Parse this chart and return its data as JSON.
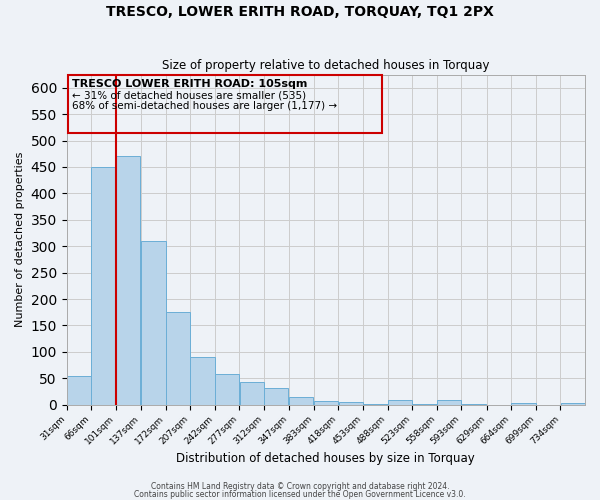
{
  "title": "TRESCO, LOWER ERITH ROAD, TORQUAY, TQ1 2PX",
  "subtitle": "Size of property relative to detached houses in Torquay",
  "xlabel": "Distribution of detached houses by size in Torquay",
  "ylabel": "Number of detached properties",
  "bins": [
    "31sqm",
    "66sqm",
    "101sqm",
    "137sqm",
    "172sqm",
    "207sqm",
    "242sqm",
    "277sqm",
    "312sqm",
    "347sqm",
    "383sqm",
    "418sqm",
    "453sqm",
    "488sqm",
    "523sqm",
    "558sqm",
    "593sqm",
    "629sqm",
    "664sqm",
    "699sqm",
    "734sqm"
  ],
  "bin_edges": [
    31,
    66,
    101,
    137,
    172,
    207,
    242,
    277,
    312,
    347,
    383,
    418,
    453,
    488,
    523,
    558,
    593,
    629,
    664,
    699,
    734
  ],
  "bin_width": 35,
  "values": [
    55,
    450,
    470,
    310,
    175,
    90,
    58,
    42,
    32,
    15,
    7,
    5,
    2,
    8,
    2,
    9,
    2,
    0,
    4,
    0,
    3
  ],
  "bar_color": "#b8d4ea",
  "bar_edge_color": "#6baed6",
  "property_line_x": 101,
  "marker_line_color": "#cc0000",
  "annotation_box_color": "#cc0000",
  "annotation_title": "TRESCO LOWER ERITH ROAD: 105sqm",
  "annotation_line1": "← 31% of detached houses are smaller (535)",
  "annotation_line2": "68% of semi-detached houses are larger (1,177) →",
  "ylim": [
    0,
    625
  ],
  "yticks": [
    0,
    50,
    100,
    150,
    200,
    250,
    300,
    350,
    400,
    450,
    500,
    550,
    600
  ],
  "grid_color": "#cccccc",
  "bg_color": "#eef2f7",
  "footer1": "Contains HM Land Registry data © Crown copyright and database right 2024.",
  "footer2": "Contains public sector information licensed under the Open Government Licence v3.0."
}
